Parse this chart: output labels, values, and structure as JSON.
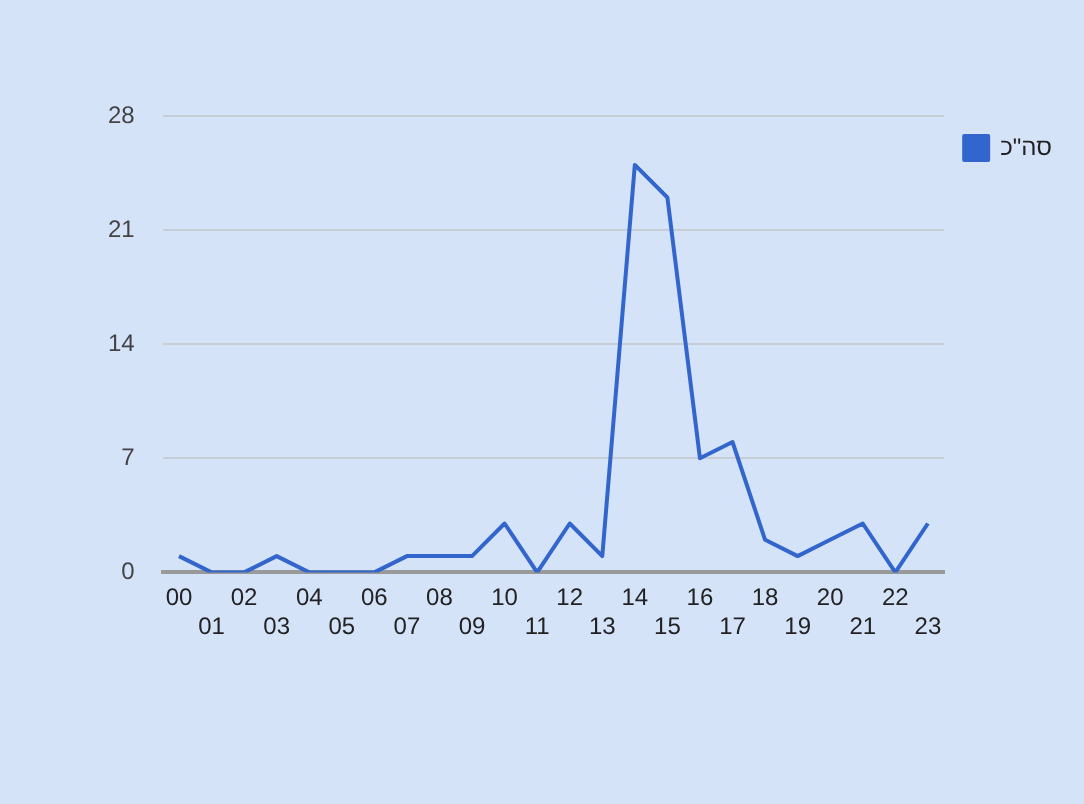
{
  "chart_data": {
    "type": "line",
    "categories": [
      "00",
      "01",
      "02",
      "03",
      "04",
      "05",
      "06",
      "07",
      "08",
      "09",
      "10",
      "11",
      "12",
      "13",
      "14",
      "15",
      "16",
      "17",
      "18",
      "19",
      "20",
      "21",
      "22",
      "23"
    ],
    "series": [
      {
        "name": "סה\"כ",
        "color": "#3366cc",
        "values": [
          1,
          0,
          0,
          1,
          0,
          0,
          0,
          1,
          1,
          1,
          3,
          0,
          3,
          1,
          25,
          23,
          7,
          8,
          2,
          1,
          2,
          3,
          0,
          3
        ]
      }
    ],
    "ylim": [
      0,
      28
    ],
    "yticks": [
      0,
      7,
      14,
      21,
      28
    ],
    "grid": "y",
    "legend": "top right",
    "marker": "none",
    "line_style": "solid"
  }
}
